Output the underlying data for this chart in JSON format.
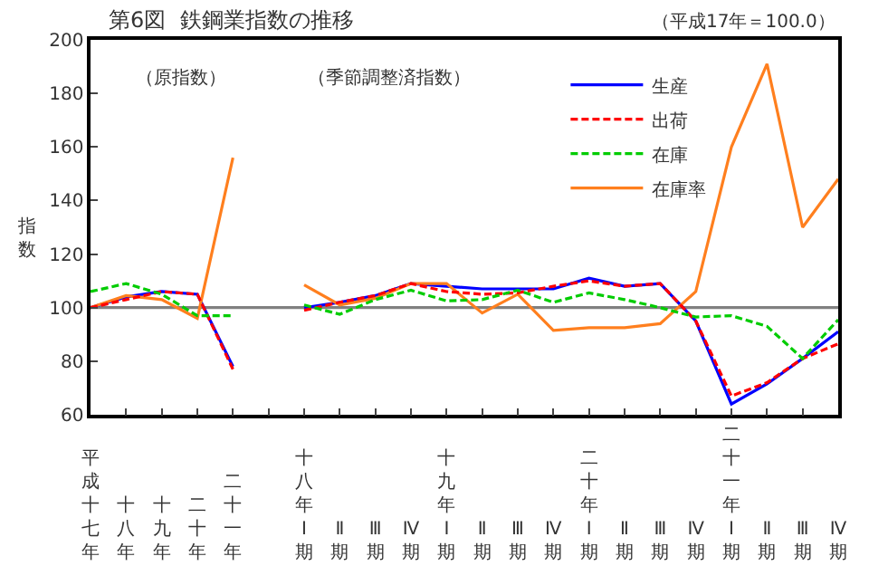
{
  "chart_data": {
    "type": "line",
    "title": "第6図  鉄鋼業指数の推移",
    "ylabel": "指数",
    "annotations": [
      "（平成17年＝100.0）",
      "（原指数）",
      "（季節調整済指数）"
    ],
    "categories": [
      "平成十七年",
      "十八年",
      "十九年",
      "二十年",
      "二十一年",
      null,
      "十八年Ⅰ期",
      "Ⅱ期",
      "Ⅲ期",
      "Ⅳ期",
      "十九年Ⅰ期",
      "Ⅱ期",
      "Ⅲ期",
      "Ⅳ期",
      "二十年Ⅰ期",
      "Ⅱ期",
      "Ⅲ期",
      "Ⅳ期",
      "二十一年Ⅰ期",
      "Ⅱ期",
      "Ⅲ期",
      "Ⅳ期"
    ],
    "series": [
      {
        "name": "生産",
        "color": "#0000ff",
        "line_style": "solid",
        "values": [
          100,
          104,
          106,
          105,
          78,
          null,
          100,
          102,
          104.5,
          109,
          108,
          107,
          107,
          107,
          111,
          108,
          109,
          95,
          64,
          71.5,
          81,
          91
        ]
      },
      {
        "name": "出荷",
        "color": "#ff0000",
        "line_style": "dashed",
        "values": [
          100,
          103,
          106,
          105,
          77,
          null,
          99,
          102,
          104.5,
          109,
          106,
          105,
          105.5,
          108,
          110,
          108,
          109,
          95,
          67,
          72,
          81,
          86.5
        ]
      },
      {
        "name": "在庫",
        "color": "#00cc00",
        "line_style": "dashed",
        "values": [
          106,
          109,
          105,
          97,
          97,
          null,
          101,
          97.5,
          103,
          106.5,
          102.5,
          103,
          106.5,
          102,
          105.5,
          103,
          100,
          96.5,
          97,
          93,
          81,
          95.5
        ]
      },
      {
        "name": "在庫率",
        "color": "#ff7f1e",
        "line_style": "solid",
        "values": [
          100,
          104.5,
          103,
          96,
          156,
          null,
          108.5,
          101,
          103.5,
          109,
          109,
          98,
          105,
          91.5,
          92.5,
          92.5,
          94,
          106,
          160,
          191,
          130,
          148
        ]
      }
    ],
    "ylim": [
      60,
      200
    ],
    "yticks": [
      60,
      80,
      100,
      120,
      140,
      160,
      180,
      200
    ],
    "ref_lines": [
      {
        "axis": "y",
        "value": 100,
        "color": "#808080"
      }
    ],
    "grid": false,
    "legend": "top right",
    "marker": "none"
  }
}
